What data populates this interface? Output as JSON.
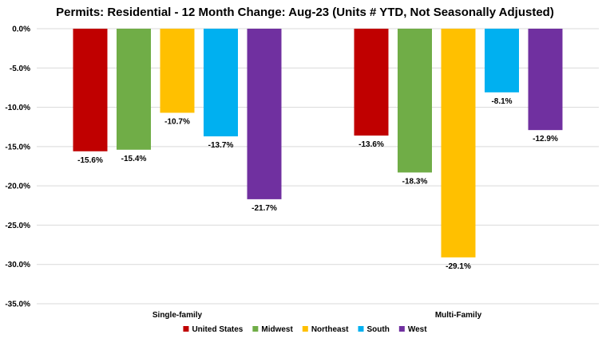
{
  "chart_data": {
    "type": "bar",
    "title": "Permits: Residential - 12 Month Change:  Aug-23 (Units # YTD, Not Seasonally Adjusted)",
    "categories": [
      "Single-family",
      "Multi-Family"
    ],
    "series": [
      {
        "name": "United States",
        "color": "#c00000",
        "values": [
          -15.6,
          -13.6
        ],
        "labels": [
          "-15.6%",
          "-13.6%"
        ]
      },
      {
        "name": "Midwest",
        "color": "#70ad47",
        "values": [
          -15.4,
          -18.3
        ],
        "labels": [
          "-15.4%",
          "-18.3%"
        ]
      },
      {
        "name": "Northeast",
        "color": "#ffc000",
        "values": [
          -10.7,
          -29.1
        ],
        "labels": [
          "-10.7%",
          "-29.1%"
        ]
      },
      {
        "name": "South",
        "color": "#00b0f0",
        "values": [
          -13.7,
          -8.1
        ],
        "labels": [
          "-13.7%",
          "-8.1%"
        ]
      },
      {
        "name": "West",
        "color": "#7030a0",
        "values": [
          -21.7,
          -12.9
        ],
        "labels": [
          "-21.7%",
          "-12.9%"
        ]
      }
    ],
    "ylim": [
      -35,
      0
    ],
    "yticks": [
      0,
      -5,
      -10,
      -15,
      -20,
      -25,
      -30,
      -35
    ],
    "ytick_labels": [
      "0.0%",
      "-5.0%",
      "-10.0%",
      "-15.0%",
      "-20.0%",
      "-25.0%",
      "-30.0%",
      "-35.0%"
    ],
    "xlabel": "",
    "ylabel": "",
    "grid": true,
    "legend_position": "bottom"
  }
}
